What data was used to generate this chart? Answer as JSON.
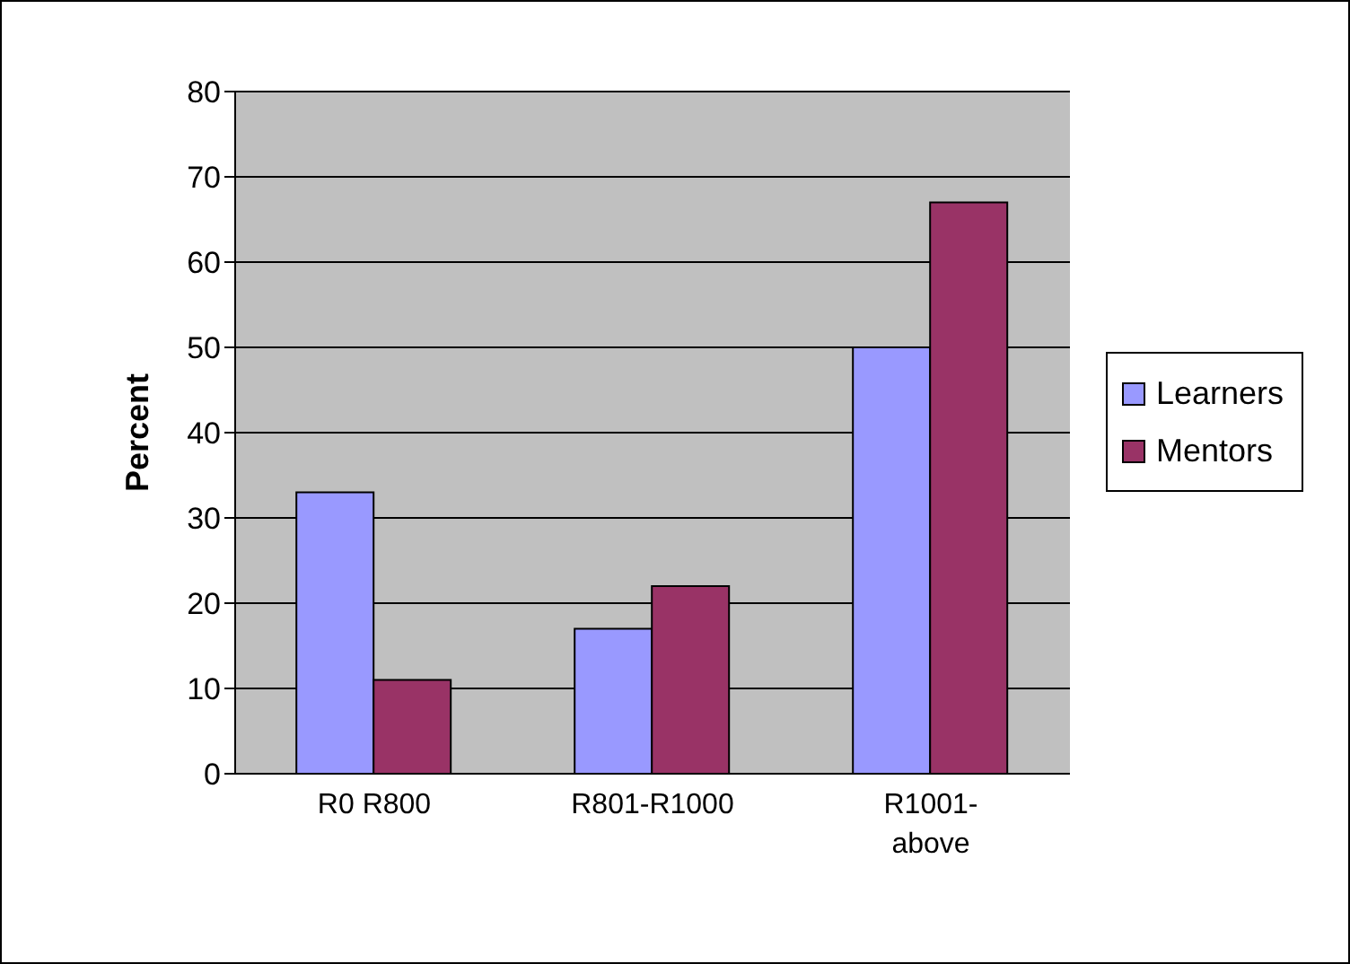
{
  "chart_data": {
    "type": "bar",
    "ylabel": "Percent",
    "categories": [
      "R0 R800",
      "R801-R1000",
      "R1001-above"
    ],
    "series": [
      {
        "name": "Learners",
        "color": "#9999ff",
        "values": [
          33,
          17,
          50
        ]
      },
      {
        "name": "Mentors",
        "color": "#993366",
        "values": [
          11,
          22,
          67
        ]
      }
    ],
    "ylim": [
      0,
      80
    ],
    "yticks": [
      0,
      10,
      20,
      30,
      40,
      50,
      60,
      70,
      80
    ],
    "grid": "y",
    "legend": "right"
  }
}
